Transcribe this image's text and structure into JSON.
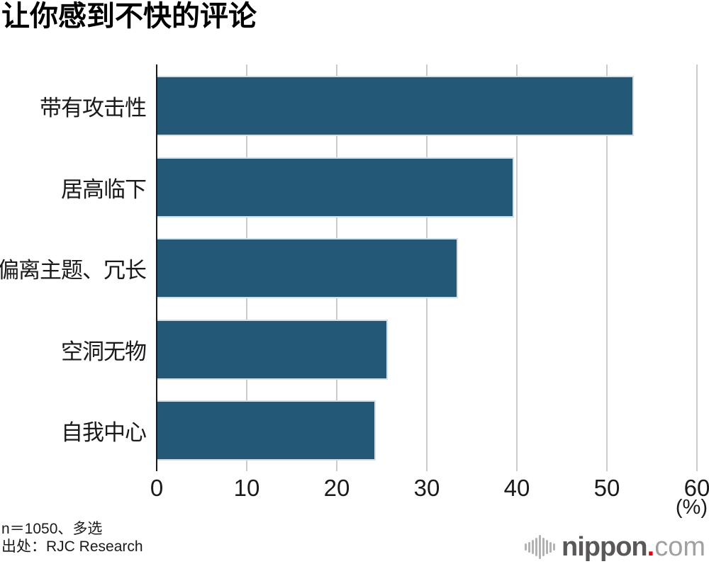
{
  "title": "让你感到不快的评论",
  "chart_data": {
    "type": "bar",
    "orientation": "horizontal",
    "title": "让你感到不快的评论",
    "categories": [
      "带有攻击性",
      "居高临下",
      "偏离主题、冗长",
      "空洞无物",
      "自我中心"
    ],
    "values": [
      52.8,
      39.5,
      33.3,
      25.5,
      24.2
    ],
    "xlabel": "(%)",
    "xlim": [
      0,
      60
    ],
    "xticks": [
      0,
      10,
      20,
      30,
      40,
      50,
      60
    ],
    "grid": true,
    "legend": false,
    "bar_color": "#245877",
    "gridline_color": "#cccccc",
    "axis_color": "#1a1a1a"
  },
  "footnotes": {
    "sample": "n＝1050、多选",
    "source": "出处：RJC Research"
  },
  "logo": {
    "brand_bold": "nippon",
    "brand_dot": ".",
    "brand_light": "com",
    "dot_color": "#e60012",
    "icon": "sound-wave-icon"
  }
}
